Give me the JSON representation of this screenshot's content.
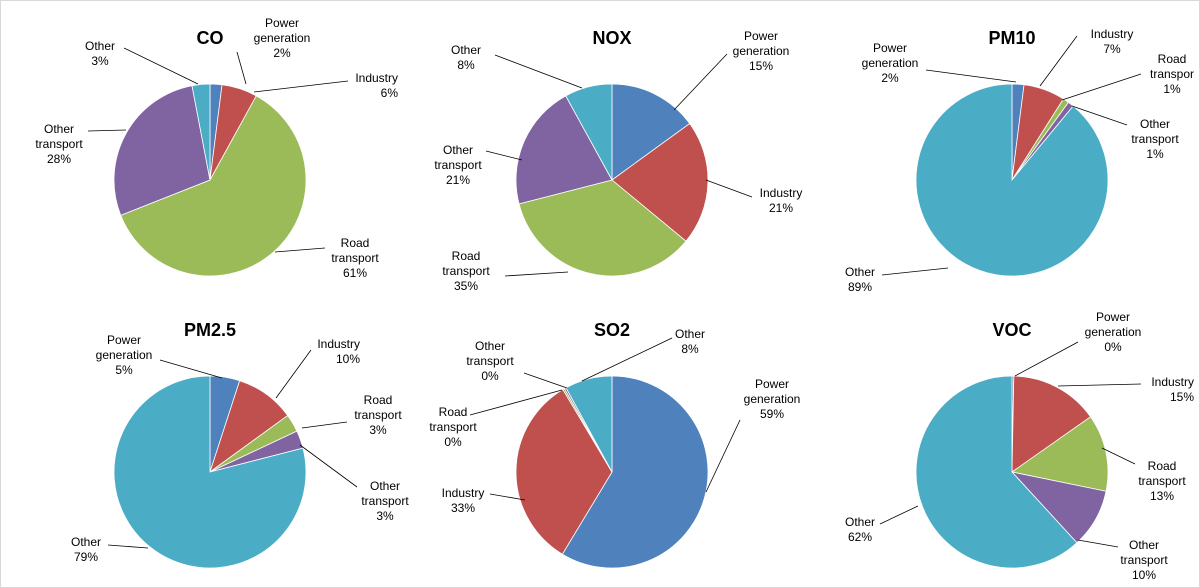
{
  "chart_data": [
    {
      "type": "pie",
      "title": "CO",
      "slices": [
        {
          "name": "Power generation",
          "label_lines": [
            "Power",
            "generation"
          ],
          "value": 2,
          "pct_label": "2%"
        },
        {
          "name": "Industry",
          "label_lines": [
            "Industry"
          ],
          "value": 6,
          "pct_label": "6%"
        },
        {
          "name": "Road transport",
          "label_lines": [
            "Road",
            "transport"
          ],
          "value": 61,
          "pct_label": "61%"
        },
        {
          "name": "Other transport",
          "label_lines": [
            "Other",
            "transport"
          ],
          "value": 28,
          "pct_label": "28%"
        },
        {
          "name": "Other",
          "label_lines": [
            "Other"
          ],
          "value": 3,
          "pct_label": "3%"
        }
      ]
    },
    {
      "type": "pie",
      "title": "NOX",
      "slices": [
        {
          "name": "Power generation",
          "label_lines": [
            "Power",
            "generation"
          ],
          "value": 15,
          "pct_label": "15%"
        },
        {
          "name": "Industry",
          "label_lines": [
            "Industry"
          ],
          "value": 21,
          "pct_label": "21%"
        },
        {
          "name": "Road transport",
          "label_lines": [
            "Road",
            "transport"
          ],
          "value": 35,
          "pct_label": "35%"
        },
        {
          "name": "Other transport",
          "label_lines": [
            "Other",
            "transport"
          ],
          "value": 21,
          "pct_label": "21%"
        },
        {
          "name": "Other",
          "label_lines": [
            "Other"
          ],
          "value": 8,
          "pct_label": "8%"
        }
      ]
    },
    {
      "type": "pie",
      "title": "PM10",
      "slices": [
        {
          "name": "Power generation",
          "label_lines": [
            "Power",
            "generation"
          ],
          "value": 2,
          "pct_label": "2%"
        },
        {
          "name": "Industry",
          "label_lines": [
            "Industry"
          ],
          "value": 7,
          "pct_label": "7%"
        },
        {
          "name": "Road transport",
          "label_lines": [
            "Road",
            "transpor"
          ],
          "value": 1,
          "pct_label": "1%"
        },
        {
          "name": "Other transport",
          "label_lines": [
            "Other",
            "transport"
          ],
          "value": 1,
          "pct_label": "1%"
        },
        {
          "name": "Other",
          "label_lines": [
            "Other"
          ],
          "value": 89,
          "pct_label": "89%"
        }
      ]
    },
    {
      "type": "pie",
      "title": "PM2.5",
      "slices": [
        {
          "name": "Power generation",
          "label_lines": [
            "Power",
            "generation"
          ],
          "value": 5,
          "pct_label": "5%"
        },
        {
          "name": "Industry",
          "label_lines": [
            "Industry"
          ],
          "value": 10,
          "pct_label": "10%"
        },
        {
          "name": "Road transport",
          "label_lines": [
            "Road",
            "transport"
          ],
          "value": 3,
          "pct_label": "3%"
        },
        {
          "name": "Other transport",
          "label_lines": [
            "Other",
            "transport"
          ],
          "value": 3,
          "pct_label": "3%"
        },
        {
          "name": "Other",
          "label_lines": [
            "Other"
          ],
          "value": 79,
          "pct_label": "79%"
        }
      ]
    },
    {
      "type": "pie",
      "title": "SO2",
      "slices": [
        {
          "name": "Power generation",
          "label_lines": [
            "Power",
            "generation"
          ],
          "value": 59,
          "pct_label": "59%"
        },
        {
          "name": "Industry",
          "label_lines": [
            "Industry"
          ],
          "value": 33,
          "pct_label": "33%"
        },
        {
          "name": "Road transport",
          "label_lines": [
            "Road",
            "transport"
          ],
          "value": 0.3,
          "pct_label": "0%"
        },
        {
          "name": "Other transport",
          "label_lines": [
            "Other",
            "transport"
          ],
          "value": 0.3,
          "pct_label": "0%"
        },
        {
          "name": "Other",
          "label_lines": [
            "Other"
          ],
          "value": 8,
          "pct_label": "8%"
        }
      ]
    },
    {
      "type": "pie",
      "title": "VOC",
      "slices": [
        {
          "name": "Power generation",
          "label_lines": [
            "Power",
            "generation"
          ],
          "value": 0.3,
          "pct_label": "0%"
        },
        {
          "name": "Industry",
          "label_lines": [
            "Industry"
          ],
          "value": 15,
          "pct_label": "15%"
        },
        {
          "name": "Road transport",
          "label_lines": [
            "Road",
            "transport"
          ],
          "value": 13,
          "pct_label": "13%"
        },
        {
          "name": "Other transport",
          "label_lines": [
            "Other",
            "transport"
          ],
          "value": 10,
          "pct_label": "10%"
        },
        {
          "name": "Other",
          "label_lines": [
            "Other"
          ],
          "value": 62,
          "pct_label": "62%"
        }
      ]
    }
  ],
  "colors": {
    "Power generation": "#4f81bd",
    "Industry": "#c0504d",
    "Road transport": "#9bbb59",
    "Other transport": "#8064a2",
    "Other": "#4bacc6"
  }
}
